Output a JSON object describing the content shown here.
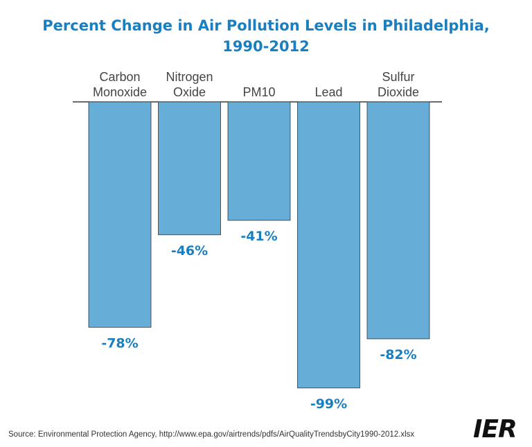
{
  "chart_data": {
    "type": "bar",
    "title_line1": "Percent Change in Air Pollution Levels in Philadelphia,",
    "title_line2": "1990-2012",
    "categories": [
      [
        "Carbon",
        "Monoxide"
      ],
      [
        "Nitrogen",
        "Oxide"
      ],
      [
        "PM10"
      ],
      [
        "Lead"
      ],
      [
        "Sulfur",
        "Dioxide"
      ]
    ],
    "values": [
      -78,
      -46,
      -41,
      -99,
      -82
    ],
    "value_labels": [
      "-78%",
      "-46%",
      "-41%",
      "-99%",
      "-82%"
    ],
    "ylim": [
      -100,
      0
    ],
    "grid": false,
    "legend": "none",
    "bar_color": "#66aed7",
    "label_color": "#1a7fc1"
  },
  "source": "Source: Environmental Protection Agency, http://www.epa.gov/airtrends/pdfs/AirQualityTrendsbyCity1990-2012.xlsx",
  "logo_text": "IER"
}
